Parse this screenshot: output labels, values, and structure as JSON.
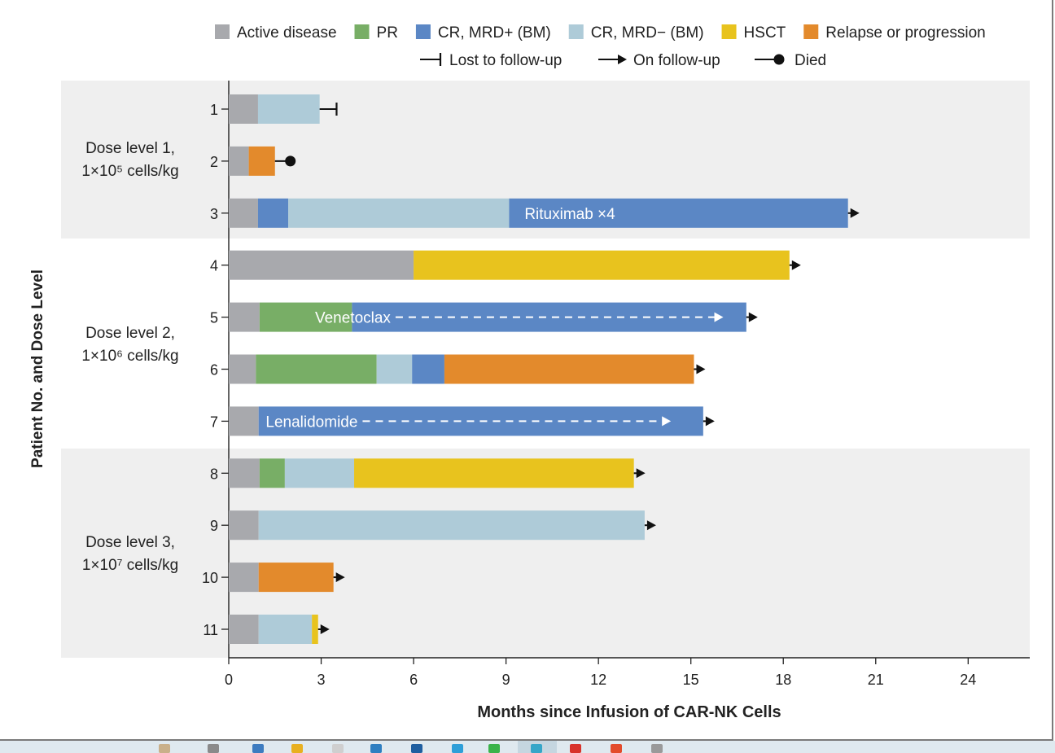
{
  "chart_data": {
    "type": "swimmer",
    "ylabel": "Patient No. and Dose Level",
    "xlabel": "Months since Infusion of CAR-NK Cells",
    "xlim": [
      0,
      26
    ],
    "xticks": [
      0,
      3,
      6,
      9,
      12,
      15,
      18,
      21,
      24
    ],
    "legend": {
      "states": [
        {
          "key": "active",
          "label": "Active disease",
          "color": "#a8a9ad"
        },
        {
          "key": "pr",
          "label": "PR",
          "color": "#78ae66"
        },
        {
          "key": "mrdpos",
          "label": "CR, MRD+ (BM)",
          "color": "#5b87c5"
        },
        {
          "key": "mrdneg",
          "label": "CR, MRD− (BM)",
          "color": "#aecbd8"
        },
        {
          "key": "hsct",
          "label": "HSCT",
          "color": "#e8c31e"
        },
        {
          "key": "relapse",
          "label": "Relapse or progression",
          "color": "#e38a2c"
        }
      ],
      "outcomes": [
        {
          "key": "lost",
          "label": "Lost to follow-up"
        },
        {
          "key": "on",
          "label": "On follow-up"
        },
        {
          "key": "died",
          "label": "Died"
        }
      ]
    },
    "groups": [
      {
        "label_line1": "Dose level 1,",
        "label_line2": "1×10⁵ cells/kg",
        "patients": [
          "1",
          "2",
          "3"
        ]
      },
      {
        "label_line1": "Dose level 2,",
        "label_line2": "1×10⁶ cells/kg",
        "patients": [
          "4",
          "5",
          "6",
          "7"
        ]
      },
      {
        "label_line1": "Dose level 3,",
        "label_line2": "1×10⁷ cells/kg",
        "patients": [
          "8",
          "9",
          "10",
          "11"
        ]
      }
    ],
    "patients": [
      {
        "id": "1",
        "outcome": "lost",
        "end": 3.5,
        "segments": [
          {
            "state": "active",
            "start": 0,
            "end": 0.95
          },
          {
            "state": "mrdneg",
            "start": 0.95,
            "end": 2.95
          }
        ]
      },
      {
        "id": "2",
        "outcome": "died",
        "end": 2.0,
        "segments": [
          {
            "state": "active",
            "start": 0,
            "end": 0.65
          },
          {
            "state": "relapse",
            "start": 0.65,
            "end": 1.5
          }
        ]
      },
      {
        "id": "3",
        "outcome": "on",
        "end": 20.1,
        "segments": [
          {
            "state": "active",
            "start": 0,
            "end": 0.95
          },
          {
            "state": "mrdpos",
            "start": 0.95,
            "end": 1.93
          },
          {
            "state": "mrdneg",
            "start": 1.93,
            "end": 9.1
          },
          {
            "state": "mrdpos",
            "start": 9.1,
            "end": 20.1
          }
        ],
        "annotation": {
          "text": "Rituximab ×4",
          "start": 9.6
        }
      },
      {
        "id": "4",
        "outcome": "on",
        "end": 18.2,
        "segments": [
          {
            "state": "active",
            "start": 0,
            "end": 6.0
          },
          {
            "state": "hsct",
            "start": 6.0,
            "end": 18.2
          }
        ]
      },
      {
        "id": "5",
        "outcome": "on",
        "end": 16.8,
        "segments": [
          {
            "state": "active",
            "start": 0,
            "end": 1.0
          },
          {
            "state": "pr",
            "start": 1.0,
            "end": 4.0
          },
          {
            "state": "mrdpos",
            "start": 4.0,
            "end": 16.8
          }
        ],
        "annotation": {
          "text": "Venetoclax",
          "start": 2.8,
          "arrow_end": 16.0
        }
      },
      {
        "id": "6",
        "outcome": "on",
        "end": 15.1,
        "segments": [
          {
            "state": "active",
            "start": 0,
            "end": 0.88
          },
          {
            "state": "pr",
            "start": 0.88,
            "end": 4.8
          },
          {
            "state": "mrdneg",
            "start": 4.8,
            "end": 5.95
          },
          {
            "state": "mrdpos",
            "start": 5.95,
            "end": 7.0
          },
          {
            "state": "relapse",
            "start": 7.0,
            "end": 15.1
          }
        ]
      },
      {
        "id": "7",
        "outcome": "on",
        "end": 15.4,
        "segments": [
          {
            "state": "active",
            "start": 0,
            "end": 0.97
          },
          {
            "state": "mrdpos",
            "start": 0.97,
            "end": 15.4
          }
        ],
        "annotation": {
          "text": "Lenalidomide",
          "start": 1.2,
          "arrow_end": 14.3
        }
      },
      {
        "id": "8",
        "outcome": "on",
        "end": 13.15,
        "segments": [
          {
            "state": "active",
            "start": 0,
            "end": 1.0
          },
          {
            "state": "pr",
            "start": 1.0,
            "end": 1.82
          },
          {
            "state": "mrdneg",
            "start": 1.82,
            "end": 4.07
          },
          {
            "state": "hsct",
            "start": 4.07,
            "end": 13.15
          }
        ]
      },
      {
        "id": "9",
        "outcome": "on",
        "end": 13.5,
        "segments": [
          {
            "state": "active",
            "start": 0,
            "end": 0.97
          },
          {
            "state": "mrdneg",
            "start": 0.97,
            "end": 13.5
          }
        ]
      },
      {
        "id": "10",
        "outcome": "on",
        "end": 3.4,
        "segments": [
          {
            "state": "active",
            "start": 0,
            "end": 0.97
          },
          {
            "state": "relapse",
            "start": 0.97,
            "end": 3.4
          }
        ]
      },
      {
        "id": "11",
        "outcome": "on",
        "end": 2.9,
        "segments": [
          {
            "state": "active",
            "start": 0,
            "end": 0.97
          },
          {
            "state": "mrdneg",
            "start": 0.97,
            "end": 2.7
          },
          {
            "state": "hsct",
            "start": 2.7,
            "end": 2.9
          }
        ]
      }
    ]
  },
  "taskbar": {
    "icons": [
      "#c9b08a",
      "#8a8a8a",
      "#3d7cc0",
      "#e8b020",
      "#cfcfcf",
      "#2f7fc1",
      "#1f5fa0",
      "#2e9fd8",
      "#3bb34a",
      "#36a6c8",
      "#d8332b",
      "#e34b2b",
      "#9a9a9a"
    ]
  }
}
